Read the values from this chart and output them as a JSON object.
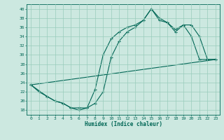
{
  "xlabel": "Humidex (Indice chaleur)",
  "bg_color": "#cce8e0",
  "grid_color": "#99ccbb",
  "line_color": "#006655",
  "xlim": [
    -0.5,
    23.5
  ],
  "ylim": [
    17,
    41
  ],
  "yticks": [
    18,
    20,
    22,
    24,
    26,
    28,
    30,
    32,
    34,
    36,
    38,
    40
  ],
  "xticks": [
    0,
    1,
    2,
    3,
    4,
    5,
    6,
    7,
    8,
    9,
    10,
    11,
    12,
    13,
    14,
    15,
    16,
    17,
    18,
    19,
    20,
    21,
    22,
    23
  ],
  "line1_x": [
    0,
    1,
    2,
    3,
    4,
    5,
    6,
    7,
    8,
    9,
    10,
    11,
    12,
    13,
    14,
    15,
    16,
    17,
    18,
    19,
    20,
    21,
    22,
    23
  ],
  "line1_y": [
    23.5,
    22,
    21,
    20,
    19.5,
    18.5,
    18.5,
    18.5,
    22.5,
    30,
    33.5,
    35,
    36,
    36.5,
    37.5,
    40,
    38,
    37,
    35,
    36.5,
    34,
    29,
    29,
    29
  ],
  "line2_x": [
    0,
    2,
    3,
    4,
    5,
    6,
    7,
    8,
    9,
    10,
    11,
    12,
    13,
    14,
    15,
    16,
    17,
    18,
    19,
    20,
    21,
    22,
    23
  ],
  "line2_y": [
    23.5,
    21,
    20,
    19.5,
    18.5,
    18,
    18.5,
    19.5,
    22,
    29.5,
    33,
    35,
    36,
    37.5,
    40,
    37.5,
    37,
    35.5,
    36.5,
    36.5,
    34,
    29,
    29
  ],
  "line3_x": [
    0,
    23
  ],
  "line3_y": [
    23.5,
    29
  ]
}
